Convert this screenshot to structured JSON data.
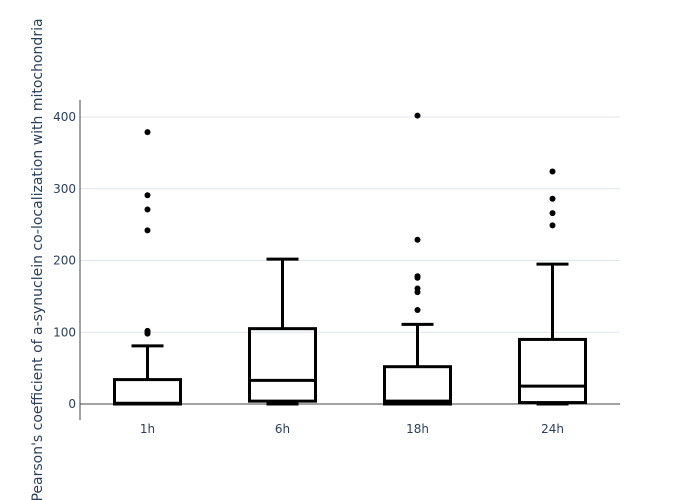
{
  "chart_data": {
    "type": "box",
    "title": "",
    "xlabel": "",
    "ylabel": "Pearson's coefficient of a-synuclein co-localization with mitochondria",
    "ylim": [
      -20,
      425
    ],
    "yticks": [
      0,
      100,
      200,
      300,
      400
    ],
    "grid": true,
    "legend": "none",
    "colors": {
      "box": "#000000",
      "grid": "#e1e5ed",
      "axis": "#444444",
      "text": "#2a3f5f"
    },
    "categories": [
      "1h",
      "6h",
      "18h",
      "24h"
    ],
    "boxes": [
      {
        "category": "1h",
        "min": 0,
        "q1": 0,
        "median": 1,
        "q3": 34,
        "max": 81,
        "outliers": [
          98,
          100,
          102,
          242,
          271,
          291,
          379
        ]
      },
      {
        "category": "6h",
        "min": 0,
        "q1": 4,
        "median": 33,
        "q3": 105,
        "max": 202,
        "outliers": []
      },
      {
        "category": "18h",
        "min": 0,
        "q1": 0,
        "median": 4,
        "q3": 52,
        "max": 111,
        "outliers": [
          131,
          156,
          161,
          176,
          178,
          229,
          402
        ]
      },
      {
        "category": "24h",
        "min": 0,
        "q1": 2,
        "median": 25,
        "q3": 90,
        "max": 195,
        "outliers": [
          249,
          266,
          286,
          324
        ]
      }
    ]
  }
}
